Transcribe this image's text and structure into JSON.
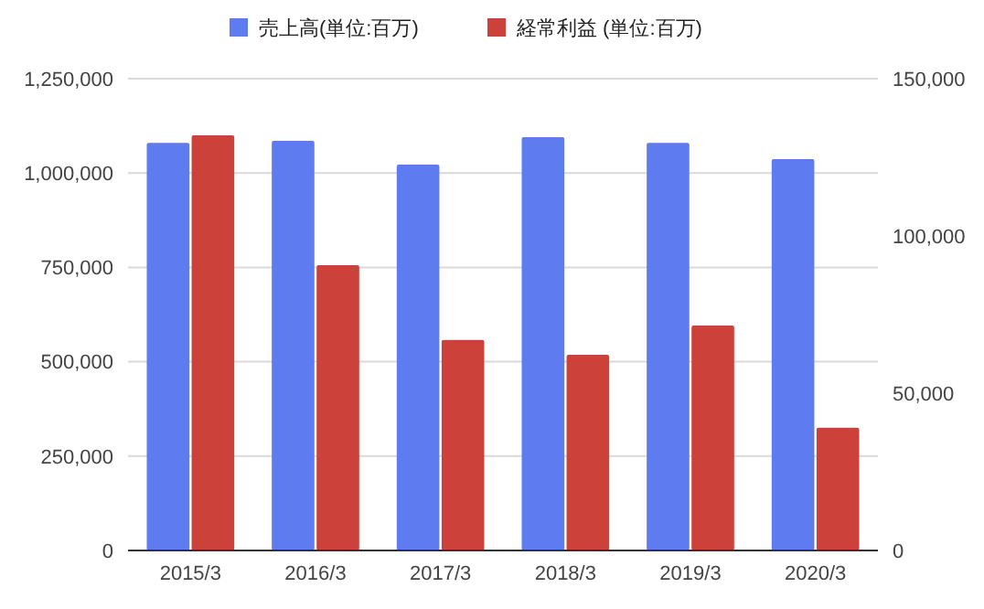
{
  "chart_data": {
    "type": "bar",
    "categories": [
      "2015/3",
      "2016/3",
      "2017/3",
      "2018/3",
      "2019/3",
      "2020/3"
    ],
    "series": [
      {
        "name": "売上高(単位:百万)",
        "color": "#5e7bf0",
        "values": [
          1080000,
          1085000,
          1022000,
          1095000,
          1080000,
          1037000
        ]
      },
      {
        "name": "経常利益 (単位:百万)",
        "color": "#cc4139",
        "axis": "y2",
        "values": [
          132000,
          90700,
          66900,
          62200,
          71500,
          39000
        ]
      }
    ],
    "ylim": [
      0,
      1250000
    ],
    "yticks": [
      {
        "value": 0,
        "label": "0"
      },
      {
        "value": 250000,
        "label": "250,000"
      },
      {
        "value": 500000,
        "label": "500,000"
      },
      {
        "value": 750000,
        "label": "750,000"
      },
      {
        "value": 1000000,
        "label": "1,000,000"
      },
      {
        "value": 1250000,
        "label": "1,250,000"
      }
    ],
    "y2lim": [
      0,
      150000
    ],
    "y2ticks": [
      {
        "value": 0,
        "label": "0"
      },
      {
        "value": 50000,
        "label": "50,000"
      },
      {
        "value": 100000,
        "label": "100,000"
      },
      {
        "value": 150000,
        "label": "150,000"
      }
    ],
    "grid": "y",
    "legend": "top"
  }
}
